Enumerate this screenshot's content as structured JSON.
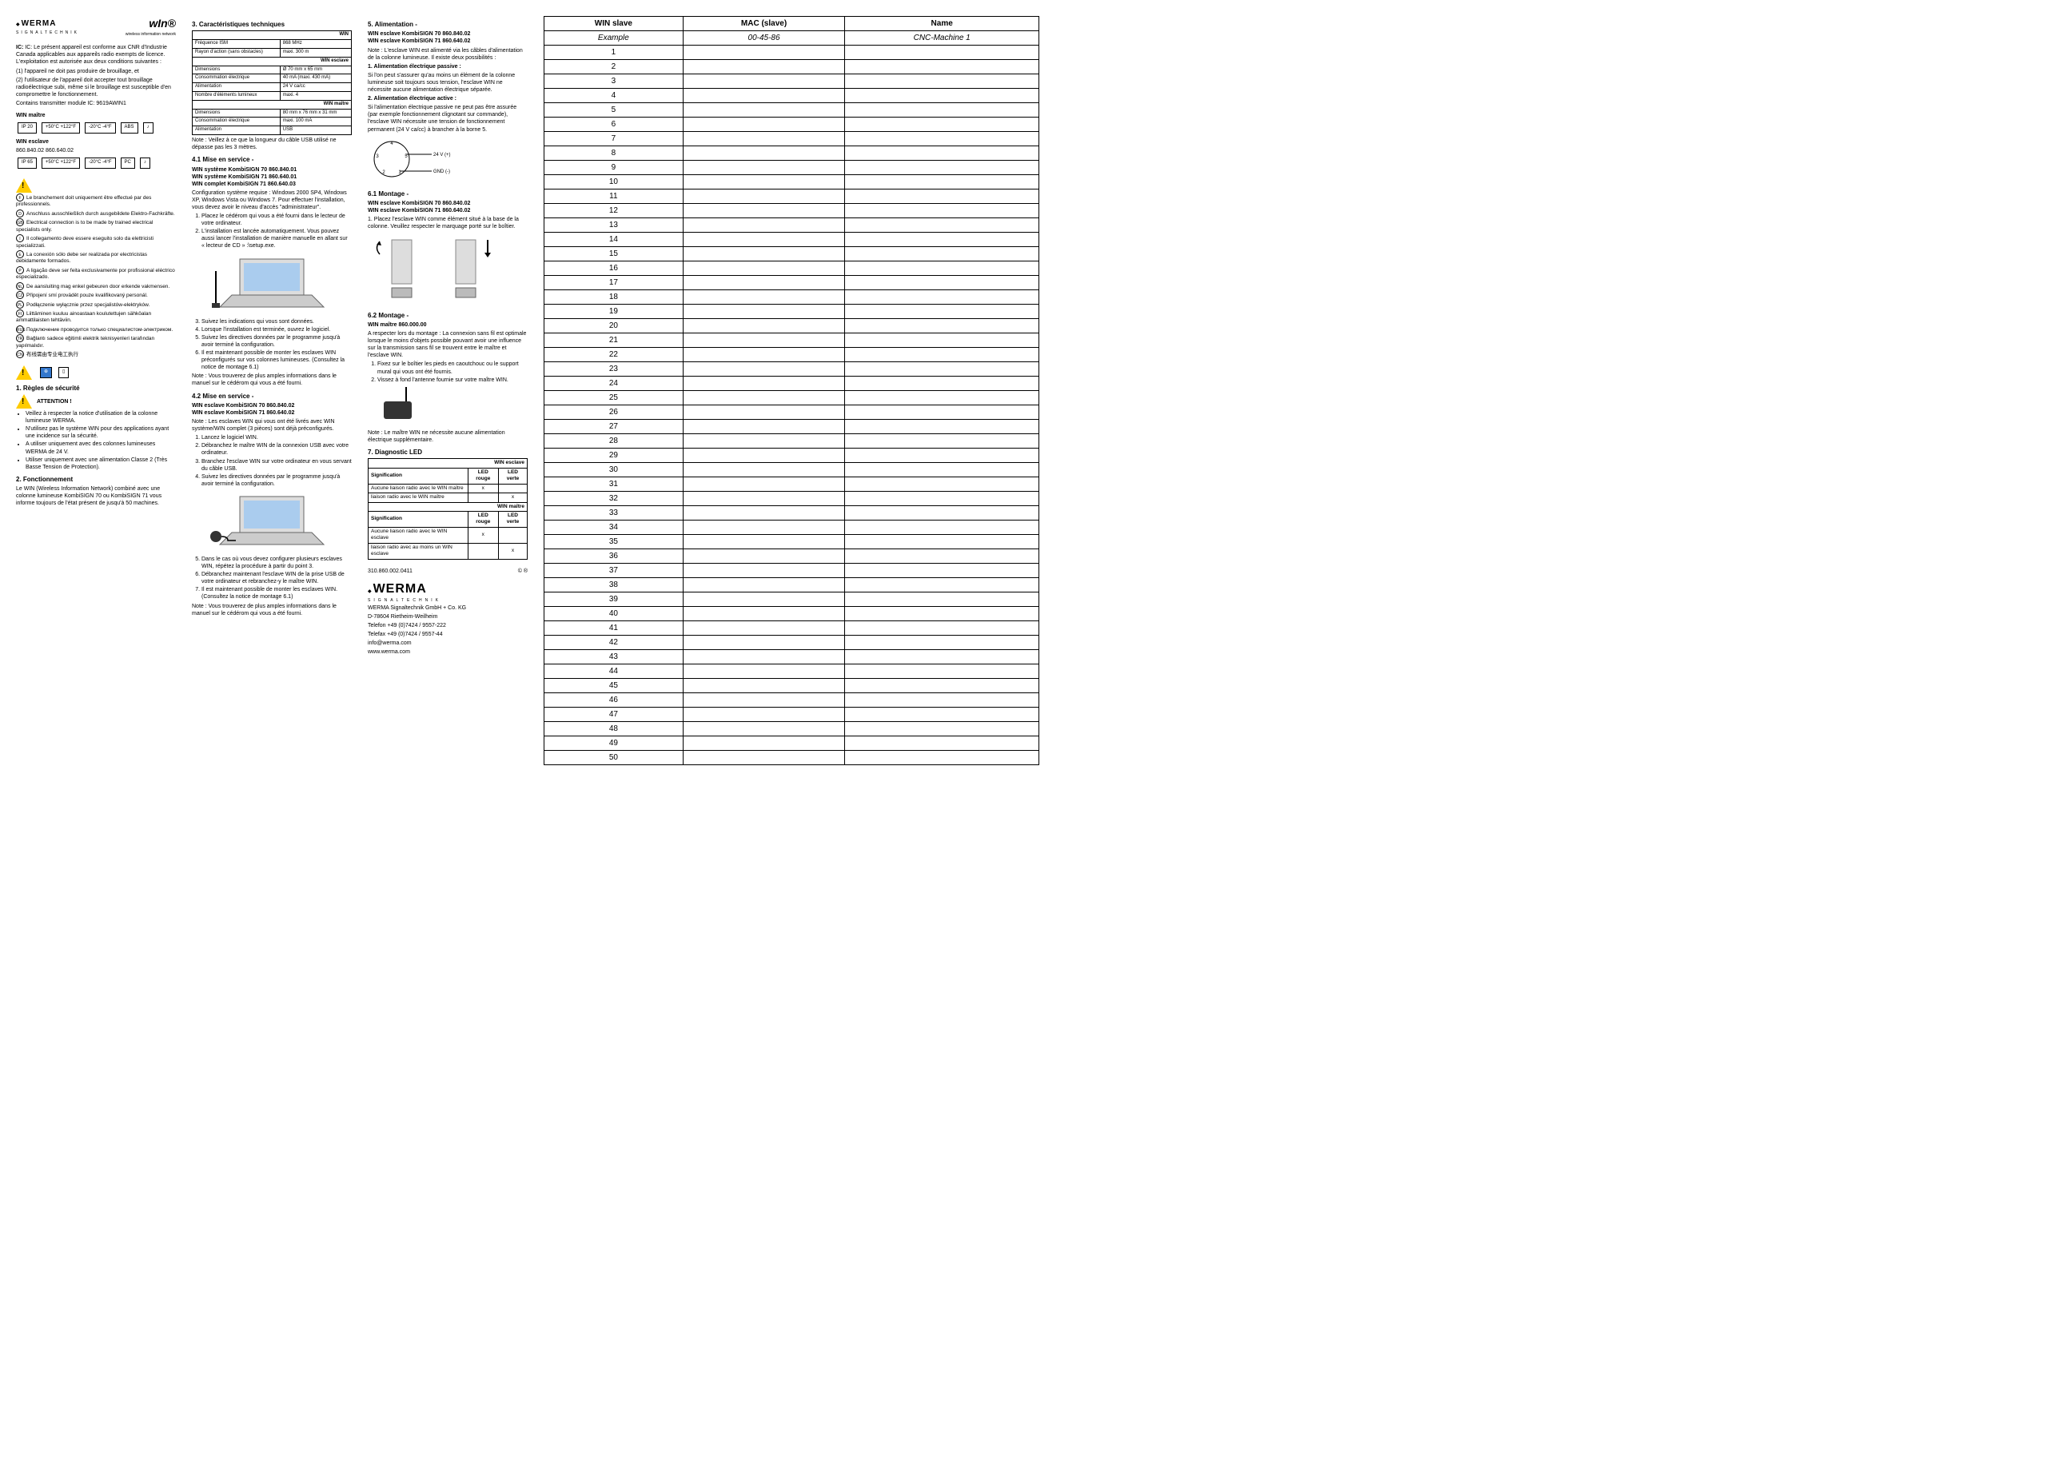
{
  "header": {
    "logo_text": "WERMA",
    "logo_sub": "SIGNALTECHNIK",
    "win_logo": "wIn®",
    "win_logo_sub": "wireless information network"
  },
  "col1": {
    "ic_text": "IC: Le présent appareil est conforme aux CNR d'Industrie Canada applicables aux appareils radio exempts de licence. L'exploitation est autorisée aux deux conditions suivantes :",
    "ic_cond1": "(1) l'appareil ne doit pas produire de brouillage, et",
    "ic_cond2": "(2) l'utilisateur de l'appareil doit accepter tout brouillage radioélectrique subi, même si le brouillage est susceptible d'en compromettre le fonctionnement.",
    "ic_transmitter": "Contains transmitter module IC: 9619AWIN1",
    "win_maitre_label": "WIN maître",
    "win_esclave_label": "WIN esclave",
    "win_esclave_codes": "860.840.02  860.640.02",
    "ip20": "IP 20",
    "ip65": "IP 65",
    "temp_high": "+50°C +122°F",
    "temp_low": "-20°C -4°F",
    "abs": "ABS",
    "pc": "PC",
    "lang_intro": "Le branchement doit uniquement être effectué par des professionnels.",
    "langs": [
      {
        "code": "F",
        "text": "Le branchement doit uniquement être effectué par des professionnels."
      },
      {
        "code": "D",
        "text": "Anschluss ausschließlich durch ausgebildete Elektro-Fachkräfte."
      },
      {
        "code": "GB",
        "text": "Electrical connection is to be made by trained electrical specialists only."
      },
      {
        "code": "I",
        "text": "Il collegamento deve essere eseguito solo da elettricisti specializzati."
      },
      {
        "code": "E",
        "text": "La conexión sólo debe ser realizada por electricistas debidamente formados."
      },
      {
        "code": "P",
        "text": "A ligação deve ser feita exclusivamente por profissional eléctrico especializado."
      },
      {
        "code": "NL",
        "text": "De aansluiting mag enkel gebeuren door erkende vakmensen."
      },
      {
        "code": "CZ",
        "text": "Připojení smí provádět pouze kvalifikovaný personál."
      },
      {
        "code": "PL",
        "text": "Podłączenie wyłącznie przez specjalistów-elektryków."
      },
      {
        "code": "FI",
        "text": "Liittäminen kuuluu ainoastaan koulutettujen sähköalan ammattilaisten tehtäviin."
      },
      {
        "code": "RUS",
        "text": "Подключение проводится только специалистом-электриком."
      },
      {
        "code": "TR",
        "text": "Bağlantı sadece eğitimli elektrik teknisyenleri tarafından yapılmalıdır."
      },
      {
        "code": "CN",
        "text": "布线需由专业电工执行"
      }
    ],
    "section1_title": "1. Règles de sécurité",
    "attention": "ATTENTION !",
    "rules": [
      "Veillez à respecter la notice d'utilisation de la colonne lumineuse WERMA.",
      "N'utilisez pas le système WIN pour des applications ayant une incidence sur la sécurité.",
      "A utiliser uniquement avec des colonnes lumineuses WERMA de 24 V.",
      "Utiliser uniquement avec une alimentation Classe 2 (Très Basse Tension de Protection)."
    ],
    "section2_title": "2. Fonctionnement",
    "section2_text": "Le WIN (Wireless Information Network) combiné avec une colonne lumineuse KombiSIGN 70 ou KombiSIGN 71 vous informe toujours de l'état présent de jusqu'à 50 machines."
  },
  "col2": {
    "section3_title": "3. Caractéristiques techniques",
    "spec_win_header": "WIN",
    "spec_rows_win": [
      [
        "Fréquence ISM",
        "868 MHz"
      ],
      [
        "Rayon d'action (sans obstacles)",
        "maxi. 300 m"
      ]
    ],
    "spec_esclave_header": "WIN esclave",
    "spec_rows_esclave": [
      [
        "Dimensions",
        "Ø 70 mm x 65 mm"
      ],
      [
        "Consommation électrique",
        "40 mA (maxi. 430 mA)"
      ],
      [
        "Alimentation",
        "24 V ca/cc"
      ],
      [
        "Nombre d'éléments lumineux",
        "maxi. 4"
      ]
    ],
    "spec_maitre_header": "WIN maître",
    "spec_rows_maitre": [
      [
        "Dimensions",
        "80 mm x 76 mm x 31 mm"
      ],
      [
        "Consommation électrique",
        "maxi. 100 mA"
      ],
      [
        "Alimentation",
        "USB"
      ]
    ],
    "spec_note": "Note : Veillez à ce que la longueur du câble USB utilisé ne dépasse pas les 3 mètres.",
    "section41_title": "4.1 Mise en service -",
    "section41_sub": "WIN système KombiSIGN 70  860.840.01\nWIN système KombiSIGN 71  860.640.01\nWIN complet KombiSIGN 71  860.640.03",
    "config_req": "Configuration système requise : Windows 2000 SP4, Windows XP, Windows Vista ou Windows 7. Pour effectuer l'installation, vous devez avoir le niveau d'accès \"administrateur\".",
    "steps41": [
      "Placez le cédérom qui vous a été fourni dans le lecteur de votre ordinateur.",
      "L'installation est lancée automatiquement. Vous pouvez aussi lancer l'installation de manière manuelle en allant sur « lecteur de CD » :\\setup.exe."
    ],
    "steps41b": [
      "Suivez les indications qui vous sont données.",
      "Lorsque l'installation est terminée, ouvrez le logiciel.",
      "Suivez les directives données par le programme jusqu'à avoir terminé la configuration.",
      "Il est maintenant possible de monter les esclaves WIN préconfigurés sur vos colonnes lumineuses. (Consultez la notice de montage 6.1)"
    ],
    "note41": "Note : Vous trouverez de plus amples informations dans le manuel sur le cédérom qui vous a été fourni.",
    "section42_title": "4.2 Mise en service -",
    "section42_sub": "WIN esclave KombiSIGN 70  860.840.02\nWIN esclave KombiSIGN 71  860.640.02",
    "note42": "Note : Les esclaves WIN qui vous ont été livrés avec WIN système/WIN complet (3 pièces) sont déjà préconfigurés.",
    "steps42": [
      "Lancez le logiciel WIN.",
      "Débranchez le maître WIN de la connexion USB avec votre ordinateur.",
      "Branchez l'esclave WIN sur votre ordinateur en vous servant du câble USB.",
      "Suivez les directives données par le programme jusqu'à avoir terminé la configuration."
    ],
    "steps42b": [
      "Dans le cas où vous devez configurer plusieurs esclaves WIN, répétez la procédure à partir du point 3.",
      "Débranchez maintenant l'esclave WIN de la prise USB de votre ordinateur et rebranchez-y le maître WIN.",
      "Il est maintenant possible de monter les esclaves WIN. (Consultez la notice de montage 6.1)"
    ],
    "note42b": "Note : Vous trouverez de plus amples informations dans le manuel sur le cédérom qui vous a été fourni."
  },
  "col3": {
    "section5_title": "5. Alimentation -",
    "section5_sub": "WIN esclave KombiSIGN 70  860.840.02\nWIN esclave KombiSIGN 71  860.640.02",
    "section5_note": "Note : L'esclave WIN est alimenté via les câbles d'alimentation de la colonne lumineuse. Il existe deux possibilités :",
    "alim1_title": "1. Alimentation électrique passive :",
    "alim1_text": "Si l'on peut s'assurer qu'au moins un élément de la colonne lumineuse soit toujours sous tension, l'esclave WIN ne nécessite aucune alimentation électrique séparée.",
    "alim2_title": "2. Alimentation électrique active :",
    "alim2_text": "Si l'alimentation électrique passive ne peut pas être assurée (par exemple fonctionnement clignotant sur commande), l'esclave WIN nécessite une tension de fonctionnement permanent (24 V ca/cc) à brancher à la borne 5.",
    "wiring_labels": {
      "v24": "24 V (+)",
      "gnd": "GND (-)",
      "pins": [
        "1",
        "2",
        "3",
        "4",
        "5"
      ]
    },
    "section61_title": "6.1 Montage -",
    "section61_sub": "WIN esclave KombiSIGN 70  860.840.02\nWIN esclave KombiSIGN 71  860.640.02",
    "step61": "1. Placez l'esclave WIN comme élément situé à la base de la colonne. Veuillez respecter le marquage porté sur le boîtier.",
    "section62_title": "6.2 Montage -",
    "section62_sub": "WIN maître 860.000.00",
    "section62_note": "A respecter lors du montage : La connexion sans fil est optimale lorsque le moins d'objets possible pouvant avoir une influence sur la transmission sans fil se trouvent entre le maître et l'esclave WIN.",
    "steps62": [
      "Fixez sur le boîtier les pieds en caoutchouc ou le support mural qui vous ont été fournis.",
      "Vissez à fond l'antenne fournie sur votre maître WIN."
    ],
    "note62": "Note : Le maître WIN ne nécessite aucune alimentation électrique supplémentaire.",
    "section7_title": "7. Diagnostic LED",
    "led_esclave_header": "WIN esclave",
    "led_cols": [
      "Signification",
      "LED rouge",
      "LED verte"
    ],
    "led_esclave_rows": [
      [
        "Aucune liaison radio avec le WIN maître",
        "x",
        ""
      ],
      [
        "liaison radio avec le WIN maître",
        "",
        "x"
      ]
    ],
    "led_maitre_header": "WIN maître",
    "led_maitre_rows": [
      [
        "Aucune liaison radio avec le WIN esclave",
        "x",
        ""
      ],
      [
        "liaison radio avec au moins un WIN esclave",
        "",
        "x"
      ]
    ],
    "doc_number": "310.860.002.0411",
    "copyright": "© ®",
    "company": {
      "logo": "WERMA",
      "logo_sub": "SIGNALTECHNIK",
      "name": "WERMA Signaltechnik GmbH + Co. KG",
      "addr": "D-78604 Rietheim-Weilheim",
      "tel": "Telefon +49 (0)7424 / 9557-222",
      "fax": "Telefax +49 (0)7424 / 9557-44",
      "email": "info@werma.com",
      "web": "www.werma.com"
    }
  },
  "slave_table": {
    "headers": [
      "WIN slave",
      "MAC (slave)",
      "Name"
    ],
    "example": [
      "Example",
      "00-45-86",
      "CNC-Machine 1"
    ],
    "rows": 50
  }
}
